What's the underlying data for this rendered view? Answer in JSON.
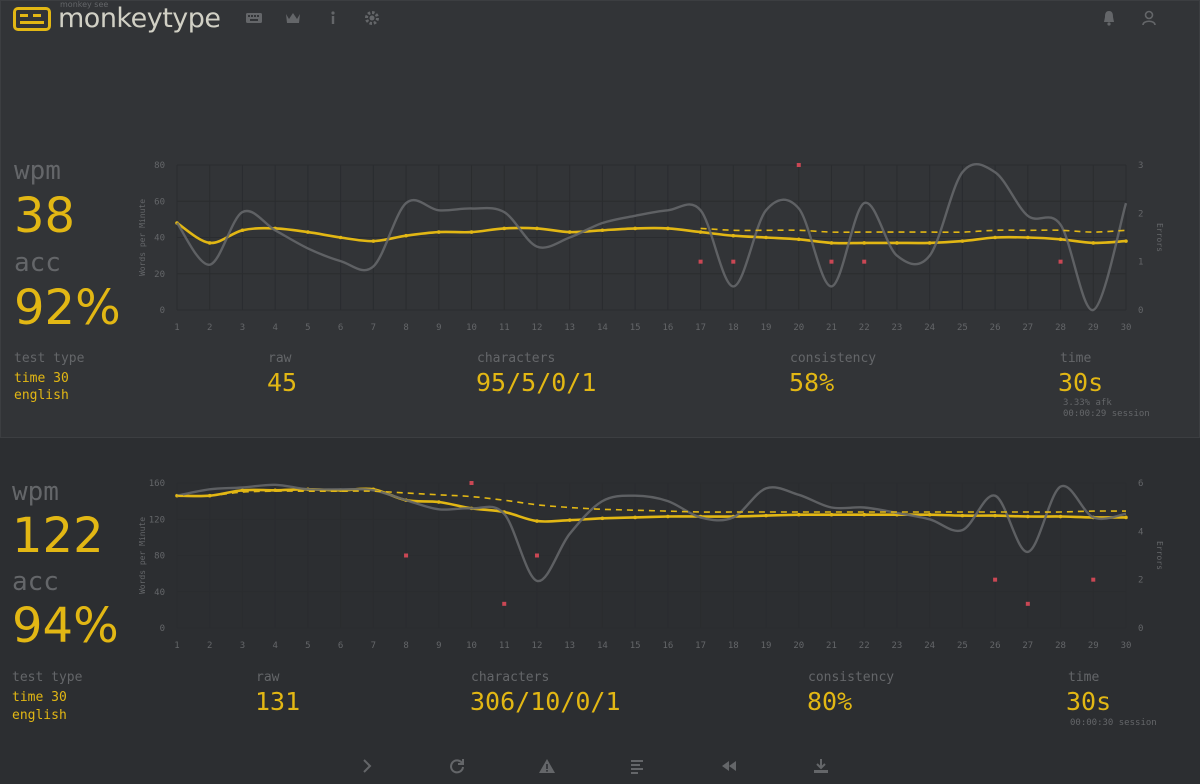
{
  "header": {
    "logo_subtitle": "monkey see",
    "logo_title": "monkeytype",
    "nav_icons": [
      "keyboard-icon",
      "crown-icon",
      "info-icon",
      "gear-icon"
    ],
    "right_icons": [
      "bell-icon",
      "user-icon"
    ]
  },
  "results": [
    {
      "wpm_label": "wpm",
      "wpm": "38",
      "acc_label": "acc",
      "acc": "92%",
      "test_type_label": "test type",
      "test_type_mode": "time 30",
      "test_type_language": "english",
      "raw_label": "raw",
      "raw": "45",
      "characters_label": "characters",
      "characters": "95/5/0/1",
      "consistency_label": "consistency",
      "consistency": "58%",
      "time_label": "time",
      "time": "30s",
      "afk": "3.33% afk",
      "session": "00:00:29 session"
    },
    {
      "wpm_label": "wpm",
      "wpm": "122",
      "acc_label": "acc",
      "acc": "94%",
      "test_type_label": "test type",
      "test_type_mode": "time 30",
      "test_type_language": "english",
      "raw_label": "raw",
      "raw": "131",
      "characters_label": "characters",
      "characters": "306/10/0/1",
      "consistency_label": "consistency",
      "consistency": "80%",
      "time_label": "time",
      "time": "30s",
      "session": "00:00:30 session"
    }
  ],
  "chart_data": [
    {
      "type": "line",
      "ylabel": "Words per Minute",
      "y2label": "Errors",
      "ylim": [
        0,
        80
      ],
      "y2lim": [
        0,
        3
      ],
      "yticks": [
        0,
        20,
        40,
        60,
        80
      ],
      "y2ticks": [
        0,
        1,
        2,
        3
      ],
      "x": [
        1,
        2,
        3,
        4,
        5,
        6,
        7,
        8,
        9,
        10,
        11,
        12,
        13,
        14,
        15,
        16,
        17,
        18,
        19,
        20,
        21,
        22,
        23,
        24,
        25,
        26,
        27,
        28,
        29,
        30
      ],
      "series": [
        {
          "role": "wpm",
          "color": "#e2b714",
          "values": [
            48,
            37,
            44,
            45,
            43,
            40,
            38,
            41,
            43,
            43,
            45,
            45,
            43,
            44,
            45,
            45,
            43,
            41,
            40,
            39,
            37,
            37,
            37,
            37,
            38,
            40,
            40,
            39,
            37,
            38
          ]
        },
        {
          "role": "raw",
          "color": "#646669",
          "values": [
            48,
            25,
            54,
            44,
            34,
            27,
            24,
            59,
            55,
            56,
            54,
            35,
            40,
            48,
            52,
            55,
            55,
            13,
            55,
            56,
            13,
            59,
            30,
            30,
            76,
            76,
            52,
            47,
            0,
            59
          ]
        },
        {
          "role": "average",
          "color": "#e2b714",
          "dashed": true,
          "values": [
            null,
            null,
            null,
            null,
            null,
            null,
            null,
            null,
            null,
            null,
            null,
            null,
            null,
            null,
            null,
            null,
            45,
            44,
            44,
            44,
            43,
            43,
            43,
            43,
            43,
            44,
            44,
            44,
            43,
            44
          ]
        },
        {
          "role": "errors",
          "color": "#ca4754",
          "points": [
            [
              17,
              1
            ],
            [
              18,
              1
            ],
            [
              20,
              3
            ],
            [
              21,
              1
            ],
            [
              22,
              1
            ],
            [
              28,
              1
            ]
          ]
        }
      ]
    },
    {
      "type": "line",
      "ylabel": "Words per Minute",
      "y2label": "Errors",
      "ylim": [
        0,
        160
      ],
      "y2lim": [
        0,
        6
      ],
      "yticks": [
        0,
        40,
        80,
        120,
        160
      ],
      "y2ticks": [
        0,
        2,
        4,
        6
      ],
      "x": [
        1,
        2,
        3,
        4,
        5,
        6,
        7,
        8,
        9,
        10,
        11,
        12,
        13,
        14,
        15,
        16,
        17,
        18,
        19,
        20,
        21,
        22,
        23,
        24,
        25,
        26,
        27,
        28,
        29,
        30
      ],
      "series": [
        {
          "role": "wpm",
          "color": "#e2b714",
          "values": [
            146,
            146,
            152,
            152,
            153,
            152,
            153,
            141,
            139,
            132,
            128,
            118,
            119,
            121,
            122,
            123,
            123,
            123,
            124,
            125,
            125,
            125,
            125,
            125,
            124,
            124,
            123,
            123,
            122,
            122
          ]
        },
        {
          "role": "raw",
          "color": "#646669",
          "values": [
            146,
            153,
            155,
            158,
            153,
            153,
            152,
            141,
            131,
            132,
            126,
            52,
            104,
            140,
            146,
            140,
            122,
            122,
            154,
            147,
            133,
            133,
            127,
            120,
            108,
            146,
            84,
            156,
            122,
            126
          ]
        },
        {
          "role": "average",
          "color": "#e2b714",
          "dashed": true,
          "values": [
            146,
            146,
            150,
            151,
            151,
            151,
            151,
            149,
            147,
            145,
            141,
            136,
            133,
            131,
            130,
            129,
            128,
            128,
            128,
            128,
            128,
            128,
            128,
            128,
            128,
            128,
            128,
            128,
            129,
            129
          ]
        },
        {
          "role": "errors",
          "color": "#ca4754",
          "points": [
            [
              8,
              3
            ],
            [
              10,
              6
            ],
            [
              11,
              1
            ],
            [
              12,
              3
            ],
            [
              26,
              2
            ],
            [
              27,
              1
            ],
            [
              29,
              2
            ]
          ]
        }
      ]
    }
  ],
  "footer": {
    "icons": [
      "chevron-right-icon",
      "restart-icon",
      "warning-icon",
      "words-history-icon",
      "replay-icon",
      "download-icon"
    ]
  }
}
